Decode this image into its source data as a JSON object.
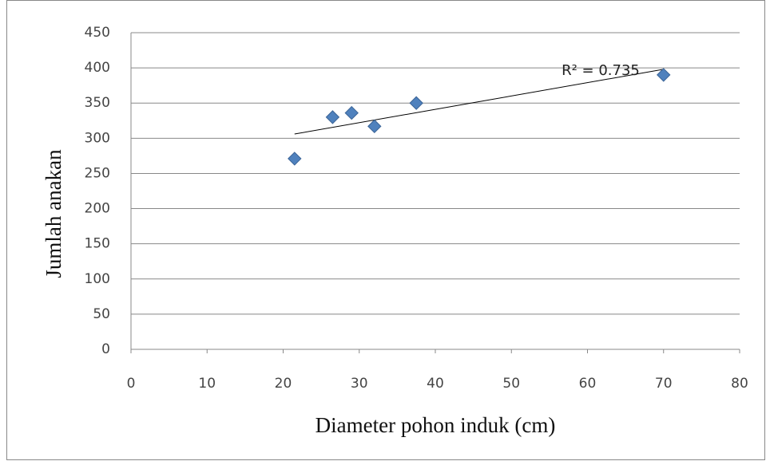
{
  "chart_data": {
    "type": "scatter",
    "x_label": "Diameter pohon induk (cm)",
    "y_label": "Jumlah anakan",
    "annotation": "R² = 0.735",
    "series": [
      {
        "color": "#4f81bd",
        "x": [
          21.5,
          26.5,
          29,
          32,
          37.5,
          70
        ],
        "values": [
          271,
          330,
          336,
          317,
          350,
          390
        ]
      }
    ],
    "trendline": {
      "color": "#000000",
      "x": [
        21.5,
        70
      ],
      "values": [
        306,
        398
      ]
    },
    "xlim": [
      0,
      80
    ],
    "xticks": [
      0,
      10,
      20,
      30,
      40,
      50,
      60,
      70,
      80
    ],
    "ylim": [
      0,
      450
    ],
    "yticks": [
      0,
      50,
      100,
      150,
      200,
      250,
      300,
      350,
      400,
      450
    ],
    "grid": true
  }
}
